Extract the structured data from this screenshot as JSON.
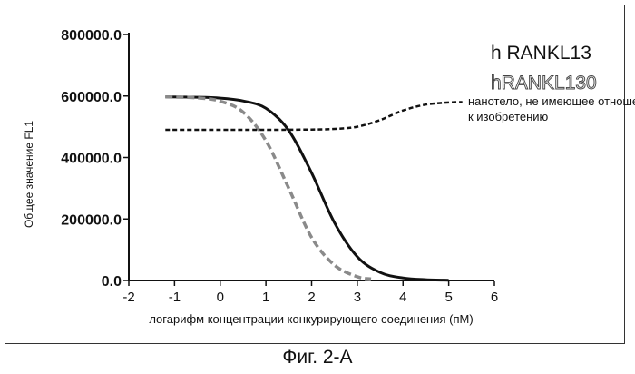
{
  "figure_caption": "Фиг. 2-А",
  "chart_data": {
    "type": "line",
    "title": "",
    "xlabel": "логарифм концентрации конкурирующего соединения (пМ)",
    "ylabel": "Общее значение FL1",
    "xlim": [
      -2,
      6
    ],
    "ylim": [
      0,
      800000
    ],
    "x_ticks": [
      "-2",
      "-1",
      "0",
      "1",
      "2",
      "3",
      "4",
      "5",
      "6"
    ],
    "y_ticks": [
      "0.0",
      "200000.0",
      "400000.0",
      "600000.0",
      "800000.0"
    ],
    "grid": false,
    "legend_placement": "top-right",
    "series": [
      {
        "name": "h RANKL13",
        "style": "solid",
        "color": "#111111",
        "x": [
          -1.2,
          -0.5,
          0.0,
          0.5,
          1.0,
          1.5,
          2.0,
          2.5,
          3.0,
          3.5,
          4.0,
          4.5,
          5.0
        ],
        "values": [
          597000,
          596000,
          593000,
          584000,
          560000,
          488000,
          350000,
          188000,
          77000,
          26000,
          8300,
          2600,
          800
        ]
      },
      {
        "name": "hRANKL130",
        "style": "dashed",
        "color": "#8a8a8a",
        "x": [
          -1.2,
          -0.5,
          0.0,
          0.5,
          1.0,
          1.5,
          2.0,
          2.5,
          3.0,
          3.3
        ],
        "values": [
          597000,
          594000,
          583000,
          548000,
          455000,
          300000,
          140000,
          50000,
          12000,
          5000
        ]
      },
      {
        "name": "нанотело, не имеющее отношение к изобретению",
        "style": "dotted",
        "color": "#111111",
        "x": [
          -1.2,
          0.0,
          1.0,
          2.0,
          2.5,
          3.0,
          3.5,
          4.0,
          4.5,
          5.0,
          5.3
        ],
        "values": [
          490000,
          490000,
          490000,
          491000,
          493000,
          500000,
          522000,
          553000,
          572000,
          579000,
          580000
        ]
      }
    ]
  }
}
